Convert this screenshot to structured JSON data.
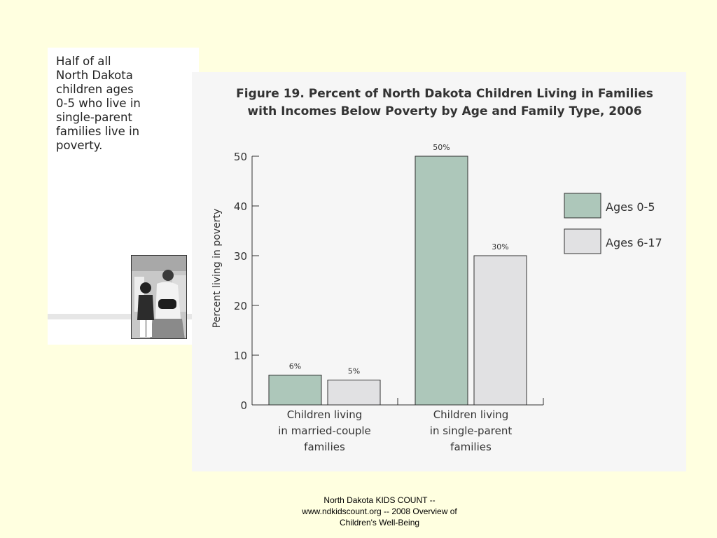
{
  "sidebar": {
    "text": "Half of all\nNorth Dakota\nchildren ages\n0-5 who live in\nsingle-parent\nfamilies live in\npoverty."
  },
  "footer": {
    "text": "North Dakota KIDS COUNT --\nwww.ndkidscount.org -- 2008 Overview of\nChildren's Well-Being"
  },
  "colors": {
    "ages_0_5": "#adc7ba",
    "ages_6_17": "#e1e1e3",
    "panel": "#f6f6f6",
    "background": "#ffffe0"
  },
  "chart_data": {
    "type": "bar",
    "title_line1": "Figure 19. Percent of North Dakota Children Living in Families",
    "title_line2": "with Incomes Below Poverty by Age and Family Type, 2006",
    "ylabel": "Percent living in poverty",
    "xlabel": "",
    "ylim": [
      0,
      50
    ],
    "yticks": [
      0,
      10,
      20,
      30,
      40,
      50
    ],
    "categories": [
      [
        "Children living",
        "in married-couple",
        "families"
      ],
      [
        "Children living",
        "in single-parent",
        "families"
      ]
    ],
    "series": [
      {
        "name": "Ages 0-5",
        "values": [
          6,
          50
        ],
        "labels": [
          "6%",
          "50%"
        ]
      },
      {
        "name": "Ages 6-17",
        "values": [
          5,
          30
        ],
        "labels": [
          "5%",
          "30%"
        ]
      }
    ],
    "legend": "right",
    "grid": false
  }
}
